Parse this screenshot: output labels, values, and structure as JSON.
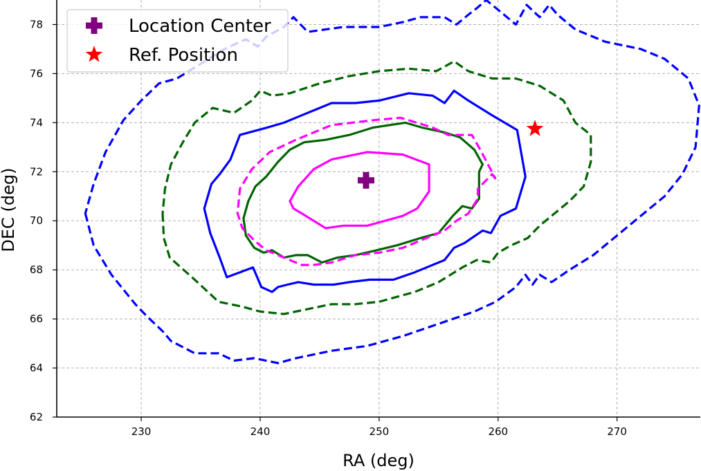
{
  "chart_data": {
    "type": "contour",
    "title": "",
    "xlabel": "RA (deg)",
    "ylabel": "DEC (deg)",
    "xlim": [
      222.9,
      277.0
    ],
    "ylim": [
      62,
      79
    ],
    "xticks": [
      230,
      240,
      250,
      260,
      270
    ],
    "yticks": [
      62,
      64,
      66,
      68,
      70,
      72,
      74,
      76,
      78
    ],
    "grid": true,
    "legend": {
      "placement": "top-left",
      "entries": [
        {
          "label": "Location Center",
          "marker": "plus",
          "color": "#800080"
        },
        {
          "label": "Ref. Position",
          "marker": "star",
          "color": "#ff0000"
        }
      ]
    },
    "points": [
      {
        "name": "Location Center",
        "ra": 248.9,
        "dec": 71.65,
        "color": "#800080",
        "marker": "plus"
      },
      {
        "name": "Ref. Position",
        "ra": 263.1,
        "dec": 73.75,
        "color": "#ff0000",
        "marker": "star"
      }
    ],
    "contours": [
      {
        "id": "blue-dashed-outer",
        "color": "#0000ff",
        "style": "dashed",
        "closed": true,
        "points": [
          [
            225.3,
            70.3
          ],
          [
            226,
            69
          ],
          [
            227.5,
            67.8
          ],
          [
            229.5,
            66.6
          ],
          [
            230.5,
            66.1
          ],
          [
            231.8,
            65.5
          ],
          [
            232.5,
            65.1
          ],
          [
            234.5,
            64.6
          ],
          [
            236.5,
            64.6
          ],
          [
            237.8,
            64.3
          ],
          [
            239.5,
            64.4
          ],
          [
            241.5,
            64.2
          ],
          [
            243,
            64.4
          ],
          [
            246,
            64.7
          ],
          [
            249,
            64.9
          ],
          [
            252,
            65.3
          ],
          [
            255,
            65.8
          ],
          [
            258,
            66.3
          ],
          [
            259.8,
            66.7
          ],
          [
            261.5,
            67.3
          ],
          [
            262.3,
            67.8
          ],
          [
            262.9,
            67.4
          ],
          [
            263.5,
            67.8
          ],
          [
            264.5,
            67.5
          ],
          [
            266,
            68.0
          ],
          [
            268,
            68.6
          ],
          [
            270,
            69.4
          ],
          [
            272,
            70.2
          ],
          [
            274,
            71.0
          ],
          [
            275.5,
            71.9
          ],
          [
            276.6,
            73.0
          ],
          [
            276.9,
            74.7
          ],
          [
            276,
            75.8
          ],
          [
            274,
            76.6
          ],
          [
            272,
            77.0
          ],
          [
            269,
            77.3
          ],
          [
            266.5,
            77.8
          ],
          [
            265,
            78.4
          ],
          [
            264.3,
            78.8
          ],
          [
            263.5,
            78.3
          ],
          [
            262.4,
            78.8
          ],
          [
            261.5,
            78.0
          ],
          [
            260,
            78.6
          ],
          [
            259,
            79.0
          ],
          [
            258.3,
            78.7
          ],
          [
            257.5,
            78.4
          ],
          [
            256.5,
            78.0
          ],
          [
            255.5,
            78.3
          ],
          [
            253.5,
            78.3
          ],
          [
            252,
            78.1
          ],
          [
            250,
            77.9
          ],
          [
            247,
            77.9
          ],
          [
            244,
            77.7
          ],
          [
            242.8,
            78.3
          ],
          [
            242,
            77.9
          ],
          [
            240.5,
            77.5
          ],
          [
            239.8,
            77.1
          ],
          [
            238.8,
            77.4
          ],
          [
            237,
            77.0
          ],
          [
            235,
            76.4
          ],
          [
            233,
            75.8
          ],
          [
            231.5,
            75.6
          ],
          [
            230,
            74.9
          ],
          [
            228.5,
            74.1
          ],
          [
            227,
            72.8
          ],
          [
            226,
            71.5
          ],
          [
            225.3,
            70.3
          ]
        ]
      },
      {
        "id": "green-dashed",
        "color": "#006400",
        "style": "dashed",
        "closed": true,
        "points": [
          [
            231.8,
            70.3
          ],
          [
            231.9,
            69.3
          ],
          [
            232.4,
            68.5
          ],
          [
            234.5,
            67.6
          ],
          [
            236.5,
            66.7
          ],
          [
            238.5,
            66.5
          ],
          [
            240,
            66.3
          ],
          [
            242,
            66.2
          ],
          [
            244,
            66.4
          ],
          [
            246,
            66.6
          ],
          [
            248,
            66.6
          ],
          [
            250,
            66.7
          ],
          [
            253,
            67.1
          ],
          [
            255,
            67.5
          ],
          [
            257,
            68.1
          ],
          [
            258.2,
            68.4
          ],
          [
            259.4,
            68.3
          ],
          [
            260,
            68.7
          ],
          [
            261.1,
            69.0
          ],
          [
            262.5,
            69.3
          ],
          [
            263.5,
            69.8
          ],
          [
            264.5,
            70.2
          ],
          [
            266,
            70.8
          ],
          [
            267.2,
            71.4
          ],
          [
            267.8,
            72.4
          ],
          [
            267.8,
            73.5
          ],
          [
            266.5,
            74.0
          ],
          [
            265.5,
            74.9
          ],
          [
            263.5,
            75.5
          ],
          [
            261.5,
            75.8
          ],
          [
            259.5,
            75.8
          ],
          [
            257.5,
            76.1
          ],
          [
            256.3,
            76.5
          ],
          [
            254.8,
            76.1
          ],
          [
            252.5,
            76.2
          ],
          [
            250,
            76.1
          ],
          [
            247.5,
            75.9
          ],
          [
            245,
            75.6
          ],
          [
            242.5,
            75.2
          ],
          [
            241,
            75.1
          ],
          [
            240,
            75.3
          ],
          [
            239.3,
            74.9
          ],
          [
            237.8,
            74.4
          ],
          [
            236,
            74.6
          ],
          [
            234.5,
            74.0
          ],
          [
            233.5,
            73.2
          ],
          [
            232.5,
            72.3
          ],
          [
            232,
            71.3
          ],
          [
            231.8,
            70.3
          ]
        ]
      },
      {
        "id": "blue-solid",
        "color": "#0000ff",
        "style": "solid",
        "closed": true,
        "points": [
          [
            235.3,
            70.5
          ],
          [
            235.8,
            69.5
          ],
          [
            236.6,
            68.5
          ],
          [
            237.2,
            67.7
          ],
          [
            238.3,
            67.9
          ],
          [
            239.4,
            68.1
          ],
          [
            240.1,
            67.3
          ],
          [
            241,
            67.1
          ],
          [
            241.5,
            67.3
          ],
          [
            242.3,
            67.4
          ],
          [
            243.2,
            67.5
          ],
          [
            244.5,
            67.4
          ],
          [
            246.2,
            67.4
          ],
          [
            247.5,
            67.5
          ],
          [
            249.2,
            67.6
          ],
          [
            251.2,
            67.6
          ],
          [
            253,
            67.9
          ],
          [
            255.5,
            68.4
          ],
          [
            256.3,
            68.9
          ],
          [
            257.2,
            69.1
          ],
          [
            257.8,
            69.3
          ],
          [
            258.7,
            69.6
          ],
          [
            259.4,
            69.5
          ],
          [
            260.2,
            70.2
          ],
          [
            261.5,
            70.5
          ],
          [
            262.3,
            71.8
          ],
          [
            261.6,
            73.7
          ],
          [
            259.5,
            74.3
          ],
          [
            257.5,
            74.9
          ],
          [
            256.3,
            75.3
          ],
          [
            255.5,
            74.8
          ],
          [
            254.5,
            75.1
          ],
          [
            252.5,
            75.2
          ],
          [
            250,
            74.9
          ],
          [
            248,
            74.8
          ],
          [
            246,
            74.8
          ],
          [
            245,
            74.6
          ],
          [
            243.5,
            74.3
          ],
          [
            242,
            74.0
          ],
          [
            240.6,
            73.8
          ],
          [
            238.3,
            73.5
          ],
          [
            237.5,
            72.5
          ],
          [
            236.6,
            71.9
          ],
          [
            235.9,
            71.5
          ],
          [
            235.3,
            70.5
          ]
        ]
      },
      {
        "id": "green-solid",
        "color": "#006400",
        "style": "solid",
        "closed": true,
        "points": [
          [
            238.6,
            70.1
          ],
          [
            238.8,
            69.4
          ],
          [
            239.5,
            68.9
          ],
          [
            240.3,
            68.7
          ],
          [
            241,
            68.8
          ],
          [
            242,
            68.5
          ],
          [
            243,
            68.6
          ],
          [
            244,
            68.6
          ],
          [
            245.2,
            68.3
          ],
          [
            246.5,
            68.5
          ],
          [
            248,
            68.6
          ],
          [
            249.8,
            68.8
          ],
          [
            251.5,
            69.0
          ],
          [
            253.5,
            69.3
          ],
          [
            255,
            69.5
          ],
          [
            256.2,
            70.2
          ],
          [
            257,
            70.6
          ],
          [
            257.8,
            70.5
          ],
          [
            258.4,
            70.9
          ],
          [
            258.4,
            72.0
          ],
          [
            258.7,
            72.3
          ],
          [
            258,
            72.9
          ],
          [
            256.8,
            73.4
          ],
          [
            255.5,
            73.6
          ],
          [
            253.6,
            73.8
          ],
          [
            252.2,
            74.0
          ],
          [
            249.5,
            73.8
          ],
          [
            247.5,
            73.5
          ],
          [
            245.5,
            73.3
          ],
          [
            243.7,
            73.2
          ],
          [
            242.5,
            72.9
          ],
          [
            241.5,
            72.4
          ],
          [
            240.5,
            71.8
          ],
          [
            239.6,
            71.4
          ],
          [
            239,
            70.8
          ],
          [
            238.6,
            70.1
          ]
        ]
      },
      {
        "id": "magenta-dashed",
        "color": "#ff00ff",
        "style": "dashed",
        "closed": false,
        "points": [
          [
            259.8,
            71.7
          ],
          [
            259.5,
            71.9
          ],
          [
            258.3,
            71.3
          ],
          [
            258.3,
            70.9
          ],
          [
            257.5,
            70.3
          ],
          [
            256.5,
            70.0
          ],
          [
            255.5,
            69.6
          ],
          [
            253.5,
            69.2
          ],
          [
            252,
            68.9
          ],
          [
            250,
            68.7
          ],
          [
            248,
            68.6
          ],
          [
            246,
            68.3
          ],
          [
            244.5,
            68.2
          ],
          [
            243.5,
            68.2
          ],
          [
            242,
            68.5
          ],
          [
            240.5,
            68.8
          ],
          [
            239.5,
            69.2
          ],
          [
            238.5,
            69.7
          ],
          [
            238.1,
            70.3
          ],
          [
            238.3,
            71.3
          ],
          [
            239.3,
            72.1
          ],
          [
            240.8,
            72.8
          ],
          [
            243,
            73.3
          ],
          [
            246,
            73.9
          ],
          [
            249.5,
            74.1
          ],
          [
            251.8,
            74.2
          ],
          [
            254.5,
            73.8
          ],
          [
            255.8,
            73.5
          ],
          [
            257.8,
            73.5
          ],
          [
            258.5,
            72.9
          ],
          [
            259.8,
            71.7
          ]
        ]
      },
      {
        "id": "magenta-solid",
        "color": "#ff00ff",
        "style": "solid",
        "closed": true,
        "points": [
          [
            242.5,
            70.8
          ],
          [
            243.2,
            71.4
          ],
          [
            244.5,
            72.1
          ],
          [
            246,
            72.5
          ],
          [
            249,
            72.8
          ],
          [
            252,
            72.7
          ],
          [
            254.2,
            72.3
          ],
          [
            254.2,
            71.2
          ],
          [
            253.2,
            70.5
          ],
          [
            252,
            70.2
          ],
          [
            250.5,
            70.0
          ],
          [
            249,
            69.8
          ],
          [
            247,
            69.8
          ],
          [
            245.5,
            69.7
          ],
          [
            244.5,
            70.0
          ],
          [
            243.5,
            70.3
          ],
          [
            242.8,
            70.5
          ],
          [
            242.5,
            70.8
          ]
        ]
      }
    ]
  }
}
